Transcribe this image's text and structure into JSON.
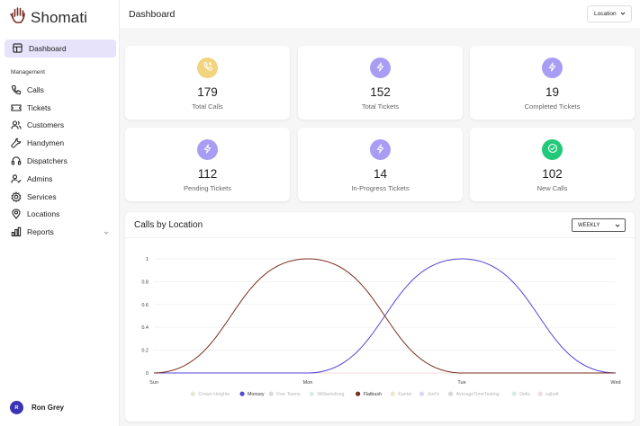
{
  "brand": {
    "name": "Shomati",
    "logo_icon": "hand-logo-icon",
    "accent": "#7a2e22"
  },
  "sidebar": {
    "active": {
      "label": "Dashboard",
      "icon": "dashboard-icon"
    },
    "section_label": "Management",
    "items": [
      {
        "label": "Calls",
        "icon": "phone-icon"
      },
      {
        "label": "Tickets",
        "icon": "ticket-icon"
      },
      {
        "label": "Customers",
        "icon": "users-icon"
      },
      {
        "label": "Handymen",
        "icon": "wrench-icon"
      },
      {
        "label": "Dispatchers",
        "icon": "headset-icon"
      },
      {
        "label": "Admins",
        "icon": "user-check-icon"
      },
      {
        "label": "Services",
        "icon": "gear-icon"
      },
      {
        "label": "Locations",
        "icon": "map-pin-icon"
      },
      {
        "label": "Reports",
        "icon": "bar-chart-icon",
        "has_submenu": true
      }
    ]
  },
  "user": {
    "initial": "R",
    "name": "Ron Grey"
  },
  "header": {
    "title": "Dashboard",
    "location_filter": "Location"
  },
  "stats": [
    {
      "value": "179",
      "label": "Total Calls",
      "icon": "phone-call-icon",
      "color": "#f2d37e"
    },
    {
      "value": "152",
      "label": "Total Tickets",
      "icon": "bolt-icon",
      "color": "#a99cf3"
    },
    {
      "value": "19",
      "label": "Completed Tickets",
      "icon": "bolt-icon",
      "color": "#a99cf3"
    },
    {
      "value": "112",
      "label": "Pending Tickets",
      "icon": "bolt-icon",
      "color": "#a99cf3"
    },
    {
      "value": "14",
      "label": "In-Progress Tickets",
      "icon": "bolt-icon",
      "color": "#a99cf3"
    },
    {
      "value": "102",
      "label": "New Calls",
      "icon": "check-circle-icon",
      "color": "#22c97a"
    }
  ],
  "calls_chart": {
    "title": "Calls by Location",
    "period": "WEEKLY"
  },
  "chart_data": {
    "type": "line",
    "x": [
      "Sun",
      "Mon",
      "Tue",
      "Wed"
    ],
    "ylim": [
      0,
      1
    ],
    "yticks": [
      "0",
      "0.2",
      "0.4",
      "0.6",
      "0.8",
      "1"
    ],
    "grid": true,
    "legend": "bottom",
    "series": [
      {
        "name": "Crown Heights",
        "values": [
          0,
          0,
          0,
          0
        ],
        "color": "#e3e9d3"
      },
      {
        "name": "Monsey",
        "values": [
          0,
          0,
          1,
          0
        ],
        "color": "#5546d8"
      },
      {
        "name": "Five Towns",
        "values": [
          0,
          0,
          0,
          0
        ],
        "color": "#d9d9d9"
      },
      {
        "name": "Williamsburg",
        "values": [
          0,
          0,
          0,
          0
        ],
        "color": "#d5eee6"
      },
      {
        "name": "Flatbush",
        "values": [
          0,
          1,
          0,
          0
        ],
        "color": "#7a2e1f"
      },
      {
        "name": "Kantei",
        "values": [
          0,
          0,
          0,
          0
        ],
        "color": "#eae8c8"
      },
      {
        "name": "Joel's",
        "values": [
          0,
          0,
          0,
          0
        ],
        "color": "#dcd7f2"
      },
      {
        "name": "AverageTimeTesting",
        "values": [
          0,
          0,
          0,
          0
        ],
        "color": "#d6d6d6"
      },
      {
        "name": "Delis",
        "values": [
          0,
          0,
          0,
          0
        ],
        "color": "#d3ece4"
      },
      {
        "name": "rajkott",
        "values": [
          0,
          0,
          0,
          0
        ],
        "color": "#f3d9dd"
      }
    ]
  }
}
